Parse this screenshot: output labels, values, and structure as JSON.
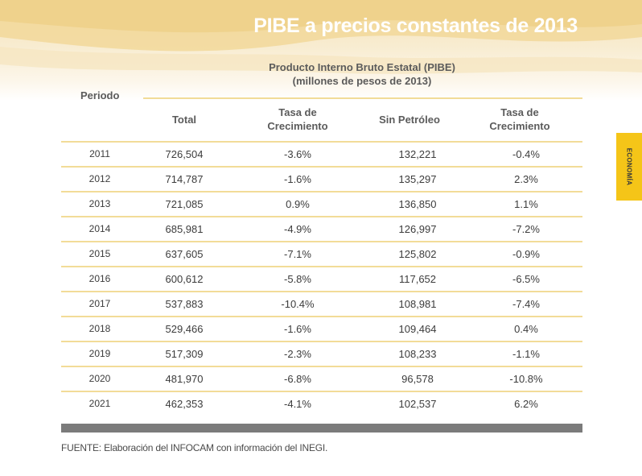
{
  "banner": {
    "title": "PIBE a precios constantes de 2013"
  },
  "table": {
    "caption_line1": "Producto Interno Bruto Estatal   (PIBE)",
    "caption_line2": "(millones de pesos de 2013)",
    "period_header": "Periodo",
    "col_total": "Total",
    "col_tasa1_l1": "Tasa de",
    "col_tasa1_l2": "Crecimiento",
    "col_sin": "Sin Petróleo",
    "col_tasa2_l1": "Tasa de",
    "col_tasa2_l2": "Crecimiento",
    "rows": [
      {
        "year": "2011",
        "total": "726,504",
        "tasa1": "-3.6%",
        "sin": "132,221",
        "tasa2": "-0.4%"
      },
      {
        "year": "2012",
        "total": "714,787",
        "tasa1": "-1.6%",
        "sin": "135,297",
        "tasa2": "2.3%"
      },
      {
        "year": "2013",
        "total": "721,085",
        "tasa1": "0.9%",
        "sin": "136,850",
        "tasa2": "1.1%"
      },
      {
        "year": "2014",
        "total": "685,981",
        "tasa1": "-4.9%",
        "sin": "126,997",
        "tasa2": "-7.2%"
      },
      {
        "year": "2015",
        "total": "637,605",
        "tasa1": "-7.1%",
        "sin": "125,802",
        "tasa2": "-0.9%"
      },
      {
        "year": "2016",
        "total": "600,612",
        "tasa1": "-5.8%",
        "sin": "117,652",
        "tasa2": "-6.5%"
      },
      {
        "year": "2017",
        "total": "537,883",
        "tasa1": "-10.4%",
        "sin": "108,981",
        "tasa2": "-7.4%"
      },
      {
        "year": "2018",
        "total": "529,466",
        "tasa1": "-1.6%",
        "sin": "109,464",
        "tasa2": "0.4%"
      },
      {
        "year": "2019",
        "total": "517,309",
        "tasa1": "-2.3%",
        "sin": "108,233",
        "tasa2": "-1.1%"
      },
      {
        "year": "2020",
        "total": "481,970",
        "tasa1": "-6.8%",
        "sin": "96,578",
        "tasa2": "-10.8%"
      },
      {
        "year": "2021",
        "total": "462,353",
        "tasa1": "-4.1%",
        "sin": "102,537",
        "tasa2": "6.2%"
      }
    ]
  },
  "footer": {
    "source": "FUENTE: Elaboración del INFOCAM con información del INEGI."
  },
  "side_tab": {
    "label": "ECONOMÍA"
  },
  "colors": {
    "accent_yellow": "#f5c518",
    "rule": "#f2dc98",
    "bar": "#7b7b7b",
    "banner": "#f4e3b9"
  }
}
